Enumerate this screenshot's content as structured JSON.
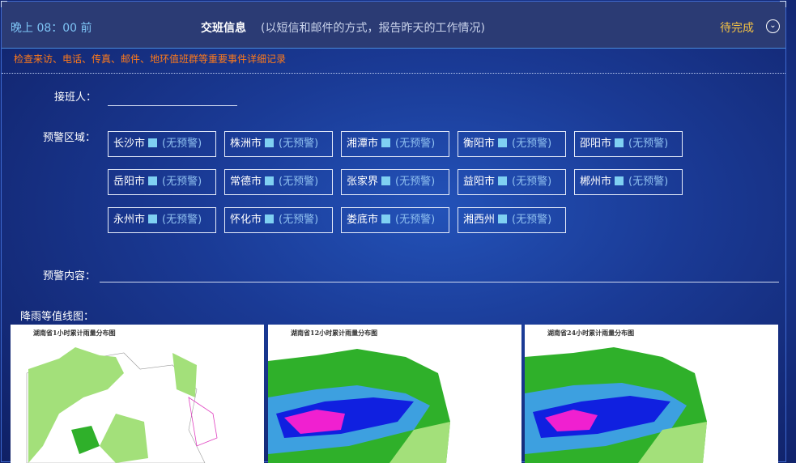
{
  "header": {
    "deadline": "晚上 08：00 前",
    "title": "交班信息",
    "subtitle": "(以短信和邮件的方式，报告昨天的工作情况)",
    "status": "待完成",
    "status_color": "#f3c144",
    "icon": "chevron-down-circle-icon"
  },
  "note": "检查来访、电话、传真、邮件、地环值班群等重要事件详细记录",
  "receiver": {
    "label": "接班人：",
    "value": ""
  },
  "region": {
    "label": "预警区域：",
    "items": [
      {
        "city": "长沙市",
        "level": "(无预警)"
      },
      {
        "city": "株洲市",
        "level": "(无预警)"
      },
      {
        "city": "湘潭市",
        "level": "(无预警)"
      },
      {
        "city": "衡阳市",
        "level": "(无预警)"
      },
      {
        "city": "邵阳市",
        "level": "(无预警)"
      },
      {
        "city": "岳阳市",
        "level": "(无预警)"
      },
      {
        "city": "常德市",
        "level": "(无预警)"
      },
      {
        "city": "张家界",
        "level": "(无预警)"
      },
      {
        "city": "益阳市",
        "level": "(无预警)"
      },
      {
        "city": "郴州市",
        "level": "(无预警)"
      },
      {
        "city": "永州市",
        "level": "(无预警)"
      },
      {
        "city": "怀化市",
        "level": "(无预警)"
      },
      {
        "city": "娄底市",
        "level": "(无预警)"
      },
      {
        "city": "湘西州",
        "level": "(无预警)"
      }
    ],
    "level_color": "#7fd0f2"
  },
  "content": {
    "label": "预警内容：",
    "value": ""
  },
  "rain": {
    "label": "降雨等值线图：",
    "maps": [
      {
        "title": "湖南省1小时累计雨量分布图"
      },
      {
        "title": "湖南省12小时累计雨量分布图"
      },
      {
        "title": "湖南省24小时累计雨量分布图"
      }
    ]
  }
}
